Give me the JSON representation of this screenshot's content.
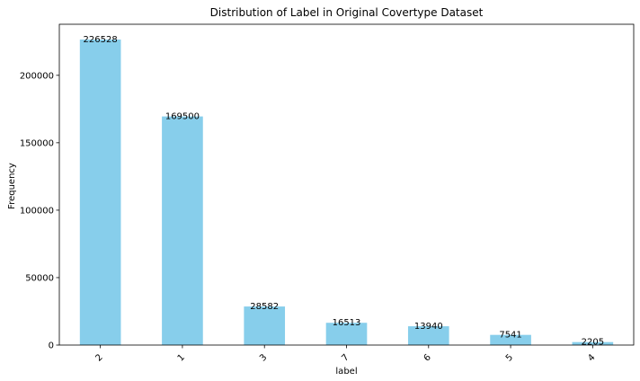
{
  "chart_data": {
    "type": "bar",
    "title": "Distribution of Label in Original Covertype Dataset",
    "xlabel": "label",
    "ylabel": "Frequency",
    "categories": [
      "2",
      "1",
      "3",
      "7",
      "6",
      "5",
      "4"
    ],
    "values": [
      226528,
      169500,
      28582,
      16513,
      13940,
      7541,
      2205
    ],
    "ylim": [
      0,
      237854
    ],
    "yticks": [
      0,
      50000,
      100000,
      150000,
      200000
    ],
    "ytick_labels": [
      "0",
      "50000",
      "100000",
      "150000",
      "200000"
    ],
    "bar_color": "#87ceeb",
    "grid": false,
    "xtick_rotation": 45
  }
}
